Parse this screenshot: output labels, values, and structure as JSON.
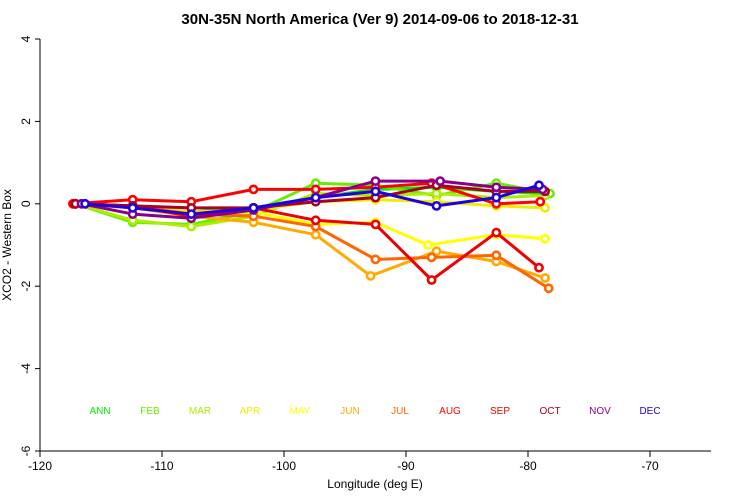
{
  "chart_data": {
    "type": "line",
    "title": "30N-35N North America (Ver 9)   2014-09-06 to 2018-12-31",
    "xlabel": "Longitude (deg E)",
    "ylabel": "XCO2 - Western Box",
    "xlim": [
      -120,
      -65
    ],
    "ylim": [
      -6,
      4
    ],
    "xticks": [
      -120,
      -110,
      -100,
      -90,
      -80,
      -70
    ],
    "yticks": [
      -6,
      -4,
      -2,
      0,
      2,
      4
    ],
    "legend_position": "bottom",
    "series": [
      {
        "name": "ANN",
        "color": "#00ee00",
        "x": [
          -117.1,
          -112.4,
          -107.6,
          -102.5,
          -97.4,
          -92.5,
          -87.5,
          -82.6,
          -78.6
        ],
        "y": [
          0,
          -0.05,
          -0.2,
          -0.1,
          0.15,
          0.35,
          0.4,
          0.3,
          0.25
        ]
      },
      {
        "name": "FEB",
        "color": "#66ee00",
        "x": [
          -117.1,
          -112.4,
          -107.6,
          -102.5,
          -97.4,
          -92.5,
          -87.5,
          -82.6,
          -78.2
        ],
        "y": [
          0,
          -0.45,
          -0.5,
          -0.2,
          0.5,
          0.45,
          0.2,
          0.5,
          0.25
        ]
      },
      {
        "name": "MAR",
        "color": "#aaee00",
        "x": [
          -117.1,
          -112.4,
          -107.6,
          -102.5,
          -97.4,
          -92.5,
          -87.5,
          -82.6,
          -78.6
        ],
        "y": [
          0,
          -0.4,
          -0.55,
          -0.3,
          0.25,
          0.2,
          0.25,
          0.15,
          0.2
        ]
      },
      {
        "name": "APR",
        "color": "#eeee00",
        "x": [
          -117.1,
          -112.4,
          -107.6,
          -102.5,
          -97.4,
          -92.5,
          -87.5,
          -82.6,
          -78.6
        ],
        "y": [
          0,
          -0.05,
          -0.2,
          -0.15,
          0.05,
          0.1,
          0.05,
          -0.05,
          -0.1
        ]
      },
      {
        "name": "MAY",
        "color": "#ffff00",
        "x": [
          -117.1,
          -112.4,
          -107.6,
          -102.5,
          -97.4,
          -92.5,
          -88.2,
          -82.6,
          -78.6
        ],
        "y": [
          0,
          -0.05,
          -0.25,
          -0.2,
          -0.5,
          -0.45,
          -1.0,
          -0.75,
          -0.85
        ]
      },
      {
        "name": "JUN",
        "color": "#ffaa00",
        "x": [
          -117.1,
          -112.4,
          -107.6,
          -102.5,
          -97.4,
          -92.9,
          -87.5,
          -82.6,
          -78.6
        ],
        "y": [
          0,
          -0.1,
          -0.3,
          -0.45,
          -0.75,
          -1.75,
          -1.15,
          -1.4,
          -1.8
        ]
      },
      {
        "name": "JUL",
        "color": "#ff6600",
        "x": [
          -117.1,
          -112.4,
          -107.6,
          -102.5,
          -97.4,
          -92.5,
          -87.9,
          -82.6,
          -78.3
        ],
        "y": [
          0,
          -0.05,
          -0.25,
          -0.3,
          -0.55,
          -1.35,
          -1.3,
          -1.25,
          -2.05
        ]
      },
      {
        "name": "AUG",
        "color": "#ff0000",
        "x": [
          -117.3,
          -112.4,
          -107.6,
          -102.5,
          -97.4,
          -92.5,
          -87.9,
          -82.6,
          -79.0
        ],
        "y": [
          0,
          0.1,
          0.05,
          0.35,
          0.35,
          0.4,
          0.5,
          0,
          0.05
        ]
      },
      {
        "name": "SEP",
        "color": "#ee0000",
        "x": [
          -117.1,
          -112.4,
          -107.6,
          -102.5,
          -97.4,
          -92.5,
          -87.9,
          -82.6,
          -79.1
        ],
        "y": [
          0,
          -0.05,
          -0.3,
          -0.1,
          -0.4,
          -0.5,
          -1.85,
          -0.7,
          -1.55
        ]
      },
      {
        "name": "OCT",
        "color": "#aa0022",
        "x": [
          -117.1,
          -112.4,
          -107.6,
          -102.5,
          -97.4,
          -92.5,
          -87.5,
          -82.6,
          -78.6
        ],
        "y": [
          0,
          -0.05,
          -0.1,
          -0.1,
          0.05,
          0.15,
          0.45,
          0.3,
          0.3
        ]
      },
      {
        "name": "NOV",
        "color": "#880088",
        "x": [
          -116.6,
          -112.4,
          -107.6,
          -102.5,
          -97.4,
          -92.5,
          -87.2,
          -82.6,
          -78.8
        ],
        "y": [
          0,
          -0.25,
          -0.35,
          -0.15,
          0.15,
          0.55,
          0.55,
          0.4,
          0.35
        ]
      },
      {
        "name": "DEC",
        "color": "#2200dd",
        "x": [
          -116.3,
          -112.4,
          -107.6,
          -102.5,
          -97.4,
          -92.5,
          -87.5,
          -82.6,
          -79.1
        ],
        "y": [
          0,
          -0.1,
          -0.25,
          -0.1,
          0.15,
          0.3,
          -0.05,
          0.15,
          0.45
        ]
      }
    ]
  }
}
